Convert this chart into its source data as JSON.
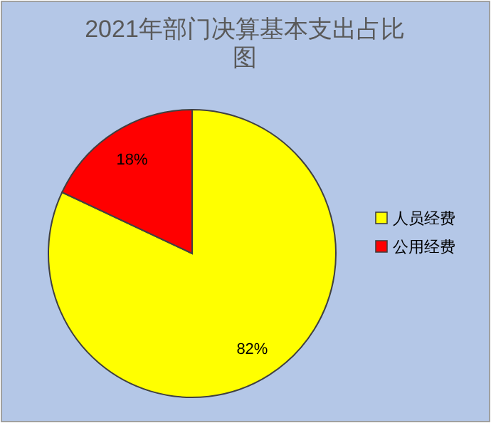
{
  "chart_data": {
    "type": "pie",
    "title": "2021年部门决算基本支出占比图",
    "categories": [
      "人员经费",
      "公用经费"
    ],
    "values": [
      82,
      18
    ],
    "colors": [
      "#ffff00",
      "#ff0000"
    ],
    "value_labels": [
      "82%",
      "18%"
    ],
    "legend": "right"
  }
}
